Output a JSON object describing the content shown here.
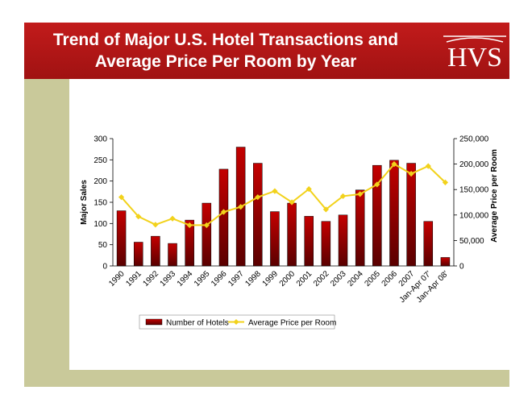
{
  "header": {
    "title_line1": "Trend of Major U.S. Hotel Transactions and",
    "title_line2": "Average Price Per Room by Year",
    "logo_text": "HVS"
  },
  "colors": {
    "banner": "#b01616",
    "bar": "#c40000",
    "line": "#f2d21b",
    "accent_panel": "#c9c99a"
  },
  "chart_data": {
    "type": "bar+line",
    "categories": [
      "1990",
      "1991",
      "1992",
      "1993",
      "1994",
      "1995",
      "1996",
      "1997",
      "1998",
      "1999",
      "2000",
      "2001",
      "2002",
      "2003",
      "2004",
      "2005",
      "2006",
      "2007",
      "Jan-Apr 07'",
      "Jan-Apr 08'"
    ],
    "series": [
      {
        "name": "Number of Hotels",
        "type": "bar",
        "axis": "left",
        "values": [
          130,
          56,
          70,
          53,
          108,
          148,
          228,
          280,
          242,
          128,
          148,
          117,
          105,
          120,
          179,
          237,
          249,
          242,
          105,
          20
        ]
      },
      {
        "name": "Average Price per Room",
        "type": "line",
        "axis": "right",
        "values": [
          135000,
          97000,
          81000,
          93000,
          80000,
          80000,
          106000,
          116000,
          135000,
          147000,
          125000,
          151000,
          111000,
          137000,
          141000,
          160000,
          200000,
          181000,
          196000,
          164000
        ]
      }
    ],
    "ylabel": "Major Sales",
    "ylabel_right": "Average Price per Room",
    "ylim": [
      0,
      300
    ],
    "ylim_right": [
      0,
      250000
    ],
    "yticks": [
      "0",
      "50",
      "100",
      "150",
      "200",
      "250",
      "300"
    ],
    "yticks_right": [
      "0",
      "50,000",
      "100,000",
      "150,000",
      "200,000",
      "250,000"
    ],
    "legend_position": "bottom",
    "grid": false
  }
}
